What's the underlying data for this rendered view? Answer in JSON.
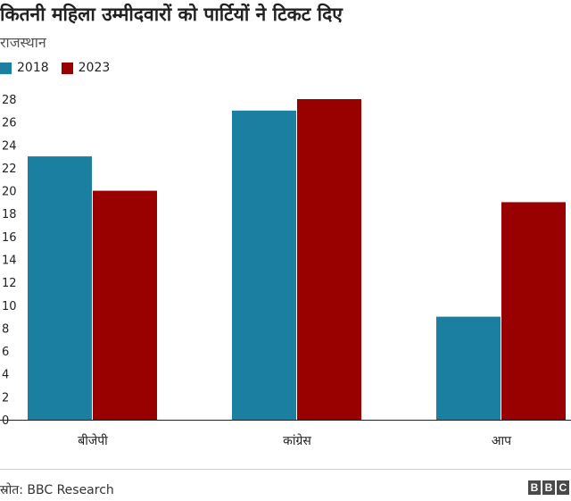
{
  "title": "कितनी महिला उम्मीदवारों को पार्टियों ने टिकट दिए",
  "subtitle": "राजस्थान",
  "source": "स्रोत: BBC Research",
  "logo_text": "BBC",
  "colors": {
    "2018": "#1a7fa0",
    "2023": "#990000"
  },
  "chart_data": {
    "type": "bar",
    "categories": [
      "बीजेपी",
      "कांग्रेस",
      "आप"
    ],
    "series": [
      {
        "name": "2018",
        "values": [
          23,
          27,
          9
        ]
      },
      {
        "name": "2023",
        "values": [
          20,
          28,
          19
        ]
      }
    ],
    "ylim": [
      0,
      28
    ],
    "yticks": [
      "0",
      "2",
      "4",
      "6",
      "8",
      "10",
      "12",
      "14",
      "16",
      "18",
      "20",
      "22",
      "24",
      "26",
      "28"
    ],
    "grid": false,
    "legend": "top-left"
  }
}
